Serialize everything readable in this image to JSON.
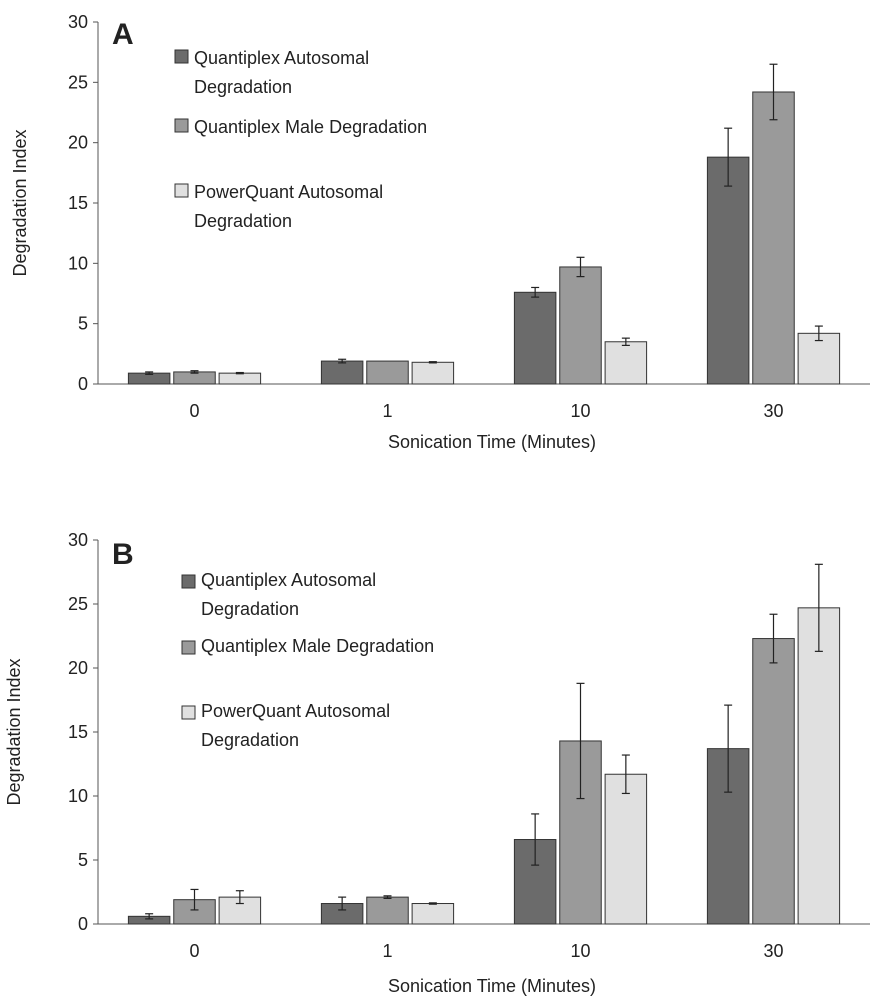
{
  "chart_data": [
    {
      "type": "bar",
      "panel_label": "A",
      "categories": [
        "0",
        "1",
        "10",
        "30"
      ],
      "xlabel": "Sonication Time (Minutes)",
      "ylabel": "Degradation Index",
      "ylim": [
        0,
        30
      ],
      "yticks": [
        "0",
        "5",
        "10",
        "15",
        "20",
        "25",
        "30"
      ],
      "grid": false,
      "legend_position": "top-left",
      "series": [
        {
          "name": "Quantiplex Autosomal Degradation",
          "values": [
            0.9,
            1.9,
            7.6,
            18.8
          ],
          "errors": [
            0.1,
            0.15,
            0.4,
            2.4
          ],
          "color": "#6b6b6b"
        },
        {
          "name": "Quantiplex Male Degradation",
          "values": [
            1.0,
            1.9,
            9.7,
            24.2
          ],
          "errors": [
            0.1,
            0.0,
            0.8,
            2.3
          ],
          "color": "#9a9a9a"
        },
        {
          "name": "PowerQuant Autosomal Degradation",
          "values": [
            0.9,
            1.8,
            3.5,
            4.2
          ],
          "errors": [
            0.05,
            0.05,
            0.3,
            0.6
          ],
          "color": "#e0e0e0"
        }
      ]
    },
    {
      "type": "bar",
      "panel_label": "B",
      "categories": [
        "0",
        "1",
        "10",
        "30"
      ],
      "xlabel": "Sonication Time (Minutes)",
      "ylabel": "Degradation Index",
      "ylim": [
        0,
        30
      ],
      "yticks": [
        "0",
        "5",
        "10",
        "15",
        "20",
        "25",
        "30"
      ],
      "grid": false,
      "legend_position": "top-left",
      "series": [
        {
          "name": "Quantiplex Autosomal Degradation",
          "values": [
            0.6,
            1.6,
            6.6,
            13.7
          ],
          "errors": [
            0.2,
            0.5,
            2.0,
            3.4
          ],
          "color": "#6b6b6b"
        },
        {
          "name": "Quantiplex Male Degradation",
          "values": [
            1.9,
            2.1,
            14.3,
            22.3
          ],
          "errors": [
            0.8,
            0.1,
            4.5,
            1.9
          ],
          "color": "#9a9a9a"
        },
        {
          "name": "PowerQuant Autosomal Degradation",
          "values": [
            2.1,
            1.6,
            11.7,
            24.7
          ],
          "errors": [
            0.5,
            0.05,
            1.5,
            3.4
          ],
          "color": "#e0e0e0"
        }
      ]
    }
  ]
}
